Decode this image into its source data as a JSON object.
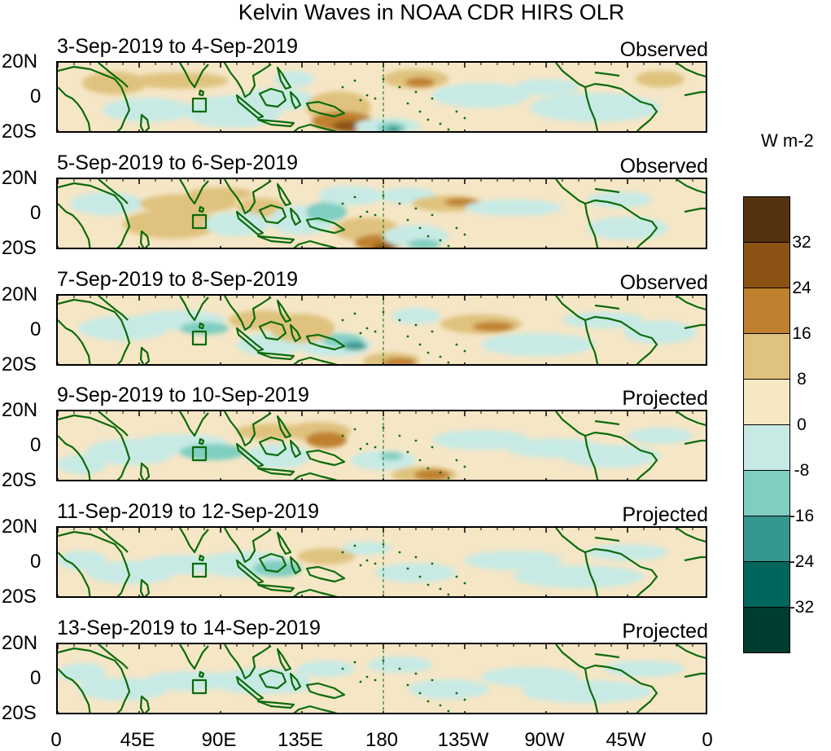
{
  "title": "Kelvin Waves in NOAA CDR HIRS OLR",
  "panels": [
    {
      "date_range": "3-Sep-2019 to 4-Sep-2019",
      "status": "Observed"
    },
    {
      "date_range": "5-Sep-2019 to 6-Sep-2019",
      "status": "Observed"
    },
    {
      "date_range": "7-Sep-2019 to 8-Sep-2019",
      "status": "Observed"
    },
    {
      "date_range": "9-Sep-2019 to 10-Sep-2019",
      "status": "Projected"
    },
    {
      "date_range": "11-Sep-2019 to 12-Sep-2019",
      "status": "Projected"
    },
    {
      "date_range": "13-Sep-2019 to 14-Sep-2019",
      "status": "Projected"
    }
  ],
  "lat_ticks": [
    "20N",
    "0",
    "20S"
  ],
  "lon_ticks": [
    "0",
    "45E",
    "90E",
    "135E",
    "180",
    "135W",
    "90W",
    "45W",
    "0"
  ],
  "colorbar": {
    "unit": "W m-2",
    "labels": [
      "32",
      "24",
      "16",
      "8",
      "0",
      "-8",
      "-16",
      "-24",
      "-32"
    ],
    "colors": [
      "#553310",
      "#8c5214",
      "#bf812d",
      "#dfc27d",
      "#f6e8c3",
      "#c7eae5",
      "#80cdc1",
      "#35978f",
      "#01665e",
      "#003c30"
    ]
  },
  "map_colors": {
    "coast": "#0b6b0b",
    "neutral": "#f5e6c6"
  }
}
